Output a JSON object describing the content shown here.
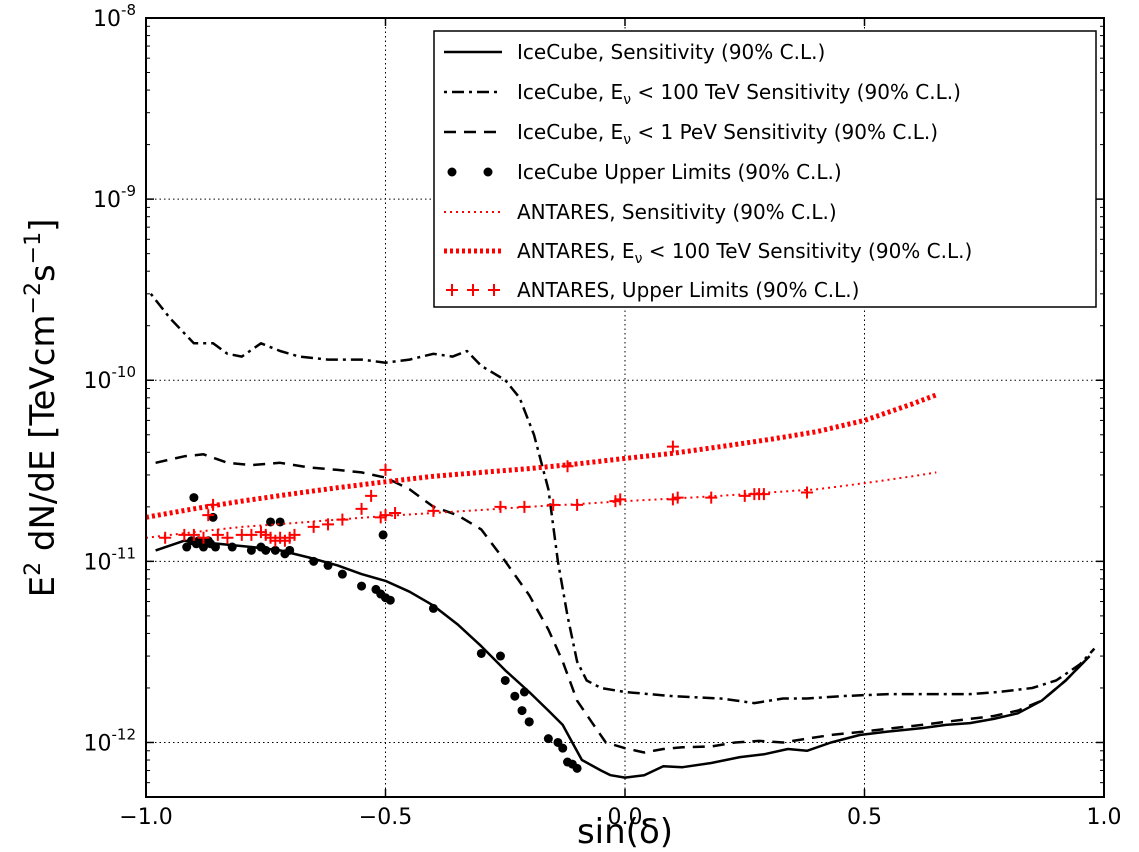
{
  "chart_data": {
    "type": "line",
    "title": "",
    "xlabel": "sin(δ)",
    "ylabel_parts": {
      "a": "E",
      "b": "2",
      "c": " dN/dE [TeVcm",
      "d": "−2",
      "e": "s",
      "f": "−1",
      "g": "]"
    },
    "xlim": [
      -1.0,
      1.0
    ],
    "ylim": [
      5e-13,
      1e-08
    ],
    "yscale": "log",
    "grid": true,
    "legend_position": "top-right",
    "x_ticks": [
      {
        "value": -1.0,
        "label": "−1.0"
      },
      {
        "value": -0.5,
        "label": "−0.5"
      },
      {
        "value": 0.0,
        "label": "0.0"
      },
      {
        "value": 0.5,
        "label": "0.5"
      },
      {
        "value": 1.0,
        "label": "1.0"
      }
    ],
    "y_ticks": [
      {
        "value": 1e-12,
        "base": "10",
        "exp": "-12"
      },
      {
        "value": 1e-11,
        "base": "10",
        "exp": "-11"
      },
      {
        "value": 1e-10,
        "base": "10",
        "exp": "-10"
      },
      {
        "value": 1e-09,
        "base": "10",
        "exp": "-9"
      },
      {
        "value": 1e-08,
        "base": "10",
        "exp": "-8"
      }
    ],
    "series": [
      {
        "name": "IceCube, Sensitivity (90% C.L.)",
        "style": "solid",
        "color": "#000000",
        "x": [
          -0.98,
          -0.92,
          -0.85,
          -0.78,
          -0.72,
          -0.66,
          -0.6,
          -0.55,
          -0.5,
          -0.45,
          -0.4,
          -0.35,
          -0.3,
          -0.25,
          -0.2,
          -0.16,
          -0.13,
          -0.11,
          -0.09,
          -0.05,
          -0.03,
          0.0,
          0.04,
          0.08,
          0.12,
          0.18,
          0.24,
          0.29,
          0.34,
          0.38,
          0.43,
          0.49,
          0.55,
          0.62,
          0.67,
          0.72,
          0.77,
          0.82,
          0.87,
          0.92,
          0.97
        ],
        "y": [
          1.15e-11,
          1.3e-11,
          1.25e-11,
          1.2e-11,
          1.15e-11,
          1.05e-11,
          9.5e-12,
          8.5e-12,
          7.8e-12,
          6.8e-12,
          5.7e-12,
          4.5e-12,
          3.4e-12,
          2.5e-12,
          1.9e-12,
          1.5e-12,
          1.25e-12,
          1e-12,
          8e-13,
          7e-13,
          6.6e-13,
          6.4e-13,
          6.6e-13,
          7.4e-13,
          7.3e-13,
          7.7e-13,
          8.3e-13,
          8.6e-13,
          9.2e-13,
          9e-13,
          1e-12,
          1.1e-12,
          1.15e-12,
          1.2e-12,
          1.25e-12,
          1.28e-12,
          1.35e-12,
          1.45e-12,
          1.7e-12,
          2.2e-12,
          3e-12
        ]
      },
      {
        "name": "IceCube, E_ν < 100 TeV Sensitivity (90% C.L.)",
        "legend_parts": {
          "pre": "IceCube, E",
          "sub": "ν",
          "post": " < 100 TeV Sensitivity (90% C.L.)"
        },
        "style": "dashdot",
        "color": "#000000",
        "x": [
          -0.99,
          -0.95,
          -0.9,
          -0.86,
          -0.83,
          -0.8,
          -0.76,
          -0.72,
          -0.68,
          -0.62,
          -0.55,
          -0.5,
          -0.45,
          -0.4,
          -0.36,
          -0.33,
          -0.3,
          -0.25,
          -0.22,
          -0.19,
          -0.16,
          -0.14,
          -0.12,
          -0.1,
          -0.08,
          -0.05,
          0.0,
          0.1,
          0.2,
          0.27,
          0.33,
          0.38,
          0.45,
          0.55,
          0.65,
          0.72,
          0.78,
          0.85,
          0.9,
          0.95,
          0.98
        ],
        "y": [
          3e-10,
          2.2e-10,
          1.6e-10,
          1.6e-10,
          1.4e-10,
          1.35e-10,
          1.6e-10,
          1.45e-10,
          1.35e-10,
          1.3e-10,
          1.3e-10,
          1.25e-10,
          1.3e-10,
          1.4e-10,
          1.35e-10,
          1.45e-10,
          1.2e-10,
          1e-10,
          8e-11,
          5e-11,
          2.5e-11,
          1e-11,
          5e-12,
          2.8e-12,
          2.2e-12,
          2e-12,
          1.9e-12,
          1.8e-12,
          1.75e-12,
          1.65e-12,
          1.75e-12,
          1.75e-12,
          1.8e-12,
          1.85e-12,
          1.85e-12,
          1.85e-12,
          1.9e-12,
          2e-12,
          2.2e-12,
          2.7e-12,
          3.3e-12
        ]
      },
      {
        "name": "IceCube, E_ν < 1 PeV Sensitivity (90% C.L.)",
        "legend_parts": {
          "pre": "IceCube, E",
          "sub": "ν",
          "post": " < 1 PeV Sensitivity (90% C.L.)"
        },
        "style": "dashed",
        "color": "#000000",
        "x": [
          -0.98,
          -0.92,
          -0.88,
          -0.83,
          -0.78,
          -0.72,
          -0.66,
          -0.6,
          -0.55,
          -0.5,
          -0.45,
          -0.4,
          -0.35,
          -0.3,
          -0.25,
          -0.2,
          -0.16,
          -0.13,
          -0.1,
          -0.07,
          -0.04,
          0.0,
          0.04,
          0.08,
          0.12,
          0.18,
          0.23,
          0.28,
          0.33,
          0.38,
          0.43,
          0.5,
          0.56,
          0.62,
          0.67,
          0.72,
          0.77,
          0.82,
          0.87,
          0.92,
          0.97
        ],
        "y": [
          3.5e-11,
          3.8e-11,
          3.9e-11,
          3.5e-11,
          3.4e-11,
          3.5e-11,
          3.3e-11,
          3.2e-11,
          3.1e-11,
          2.9e-11,
          2.5e-11,
          2e-11,
          1.8e-11,
          1.5e-11,
          1e-11,
          6.5e-12,
          4.2e-12,
          2.8e-12,
          1.7e-12,
          1.3e-12,
          1e-12,
          9.3e-13,
          8.8e-13,
          9.2e-13,
          9.4e-13,
          9.5e-13,
          1e-12,
          1.02e-12,
          1e-12,
          1.05e-12,
          1.1e-12,
          1.15e-12,
          1.2e-12,
          1.25e-12,
          1.3e-12,
          1.35e-12,
          1.4e-12,
          1.5e-12,
          1.7e-12,
          2.2e-12,
          3e-12
        ]
      },
      {
        "name": "IceCube Upper Limits (90% C.L.)",
        "style": "markers-dot",
        "color": "#000000",
        "x": [
          -0.915,
          -0.905,
          -0.9,
          -0.895,
          -0.89,
          -0.88,
          -0.87,
          -0.865,
          -0.86,
          -0.855,
          -0.82,
          -0.78,
          -0.76,
          -0.75,
          -0.74,
          -0.73,
          -0.72,
          -0.71,
          -0.7,
          -0.65,
          -0.62,
          -0.59,
          -0.55,
          -0.52,
          -0.51,
          -0.505,
          -0.5,
          -0.49,
          -0.4,
          -0.3,
          -0.26,
          -0.25,
          -0.23,
          -0.21,
          -0.215,
          -0.2,
          -0.2,
          -0.16,
          -0.14,
          -0.13,
          -0.12,
          -0.11,
          -0.1
        ],
        "y": [
          1.2e-11,
          1.3e-11,
          2.25e-11,
          1.25e-11,
          1.3e-11,
          1.2e-11,
          1.3e-11,
          1.25e-11,
          1.75e-11,
          1.2e-11,
          1.2e-11,
          1.15e-11,
          1.2e-11,
          1.15e-11,
          1.65e-11,
          1.15e-11,
          1.65e-11,
          1.1e-11,
          1.15e-11,
          1e-11,
          9.5e-12,
          8.5e-12,
          7.3e-12,
          7e-12,
          6.6e-12,
          1.4e-11,
          6.3e-12,
          6.1e-12,
          5.5e-12,
          3.1e-12,
          3e-12,
          2.2e-12,
          1.8e-12,
          1.9e-12,
          1.5e-12,
          1.3e-12,
          1.3e-12,
          1.05e-12,
          1e-12,
          9.3e-13,
          7.8e-13,
          7.6e-13,
          7.2e-13
        ]
      },
      {
        "name": "ANTARES, Sensitivity (90% C.L.)",
        "style": "dotted",
        "color": "#ff0000",
        "x": [
          -1.0,
          -0.9,
          -0.8,
          -0.7,
          -0.6,
          -0.5,
          -0.4,
          -0.3,
          -0.2,
          -0.1,
          0.0,
          0.1,
          0.2,
          0.3,
          0.4,
          0.5,
          0.6,
          0.65
        ],
        "y": [
          1.35e-11,
          1.45e-11,
          1.55e-11,
          1.62e-11,
          1.7e-11,
          1.78e-11,
          1.85e-11,
          1.92e-11,
          2e-11,
          2.07e-11,
          2.15e-11,
          2.22e-11,
          2.3e-11,
          2.4e-11,
          2.5e-11,
          2.7e-11,
          2.95e-11,
          3.1e-11
        ]
      },
      {
        "name": "ANTARES, E_ν < 100 TeV Sensitivity (90% C.L.)",
        "legend_parts": {
          "pre": "ANTARES, E",
          "sub": "ν",
          "post": " < 100 TeV Sensitivity (90% C.L.)"
        },
        "style": "dotted-thick",
        "color": "#ff0000",
        "x": [
          -1.0,
          -0.9,
          -0.8,
          -0.7,
          -0.6,
          -0.5,
          -0.4,
          -0.3,
          -0.2,
          -0.1,
          0.0,
          0.1,
          0.2,
          0.3,
          0.4,
          0.5,
          0.6,
          0.65
        ],
        "y": [
          1.75e-11,
          1.95e-11,
          2.15e-11,
          2.35e-11,
          2.55e-11,
          2.75e-11,
          2.95e-11,
          3.1e-11,
          3.25e-11,
          3.45e-11,
          3.7e-11,
          3.95e-11,
          4.3e-11,
          4.7e-11,
          5.2e-11,
          6e-11,
          7.4e-11,
          8.3e-11
        ]
      },
      {
        "name": "ANTARES, Upper Limits (90% C.L.)",
        "style": "markers-plus",
        "color": "#ff0000",
        "x": [
          -0.96,
          -0.92,
          -0.9,
          -0.88,
          -0.87,
          -0.85,
          -0.86,
          -0.83,
          -0.8,
          -0.78,
          -0.76,
          -0.75,
          -0.74,
          -0.73,
          -0.72,
          -0.71,
          -0.7,
          -0.69,
          -0.65,
          -0.62,
          -0.59,
          -0.55,
          -0.53,
          -0.51,
          -0.5,
          -0.5,
          -0.48,
          -0.4,
          -0.26,
          -0.21,
          -0.15,
          -0.12,
          -0.1,
          -0.02,
          -0.01,
          0.1,
          0.1,
          0.11,
          0.18,
          0.25,
          0.27,
          0.28,
          0.29,
          0.38
        ],
        "y": [
          1.35e-11,
          1.4e-11,
          1.4e-11,
          1.35e-11,
          1.8e-11,
          1.4e-11,
          2.05e-11,
          1.35e-11,
          1.4e-11,
          1.4e-11,
          1.45e-11,
          1.4e-11,
          1.35e-11,
          1.3e-11,
          1.35e-11,
          1.3e-11,
          1.35e-11,
          1.4e-11,
          1.55e-11,
          1.6e-11,
          1.7e-11,
          1.95e-11,
          2.3e-11,
          1.75e-11,
          3.2e-11,
          1.8e-11,
          1.85e-11,
          1.9e-11,
          2e-11,
          2e-11,
          2.05e-11,
          3.35e-11,
          2.05e-11,
          2.15e-11,
          2.2e-11,
          4.3e-11,
          2.2e-11,
          2.25e-11,
          2.25e-11,
          2.3e-11,
          2.35e-11,
          2.35e-11,
          2.35e-11,
          2.4e-11
        ]
      }
    ]
  }
}
